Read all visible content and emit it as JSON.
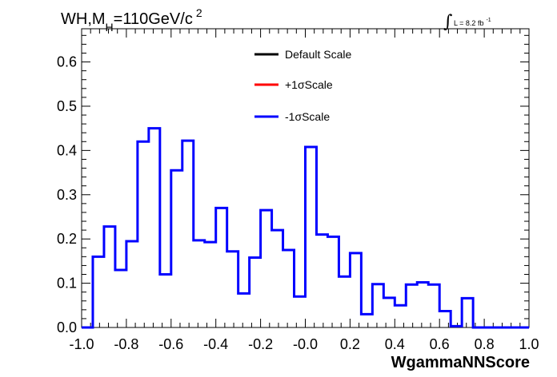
{
  "chart_data": {
    "type": "line",
    "title_main": "WH,M",
    "title_sub": "H",
    "title_rest": "=110GeV/c",
    "title_sup": "2",
    "lumi_label": "L = 8.2 fb",
    "lumi_sup": "-1",
    "xlabel": "WgammaNNScore",
    "ylabel": "",
    "xlim": [
      -1.0,
      1.0
    ],
    "ylim": [
      0.0,
      0.675
    ],
    "x_ticks": [
      "-1.0",
      "-0.8",
      "-0.6",
      "-0.4",
      "-0.2",
      "-0.0",
      "0.2",
      "0.4",
      "0.6",
      "0.8",
      "1.0"
    ],
    "y_ticks": [
      "0.0",
      "0.1",
      "0.2",
      "0.3",
      "0.4",
      "0.5",
      "0.6"
    ],
    "legend": [
      {
        "name": "Default Scale",
        "color": "#000000"
      },
      {
        "name": "+1σScale",
        "color": "#ff0000"
      },
      {
        "name": "-1σScale",
        "color": "#0000ff"
      }
    ],
    "bin_edges": [
      -1.0,
      -0.95,
      -0.9,
      -0.85,
      -0.8,
      -0.75,
      -0.7,
      -0.65,
      -0.6,
      -0.55,
      -0.5,
      -0.45,
      -0.4,
      -0.35,
      -0.3,
      -0.25,
      -0.2,
      -0.15,
      -0.1,
      -0.05,
      0.0,
      0.05,
      0.1,
      0.15,
      0.2,
      0.25,
      0.3,
      0.35,
      0.4,
      0.45,
      0.5,
      0.55,
      0.6,
      0.65,
      0.7,
      0.75,
      0.8,
      0.85,
      0.9,
      0.95,
      1.0
    ],
    "series": [
      {
        "name": "-1σScale",
        "color": "#0000ff",
        "values": [
          0.0,
          0.16,
          0.228,
          0.13,
          0.195,
          0.42,
          0.45,
          0.12,
          0.355,
          0.422,
          0.197,
          0.193,
          0.27,
          0.172,
          0.077,
          0.158,
          0.265,
          0.22,
          0.175,
          0.07,
          0.408,
          0.21,
          0.205,
          0.115,
          0.168,
          0.03,
          0.098,
          0.067,
          0.05,
          0.097,
          0.102,
          0.097,
          0.037,
          0.003,
          0.066,
          0.0,
          0.0,
          0.0,
          0.0,
          0.0
        ]
      }
    ],
    "grid": false,
    "legend_position": "top-center"
  }
}
